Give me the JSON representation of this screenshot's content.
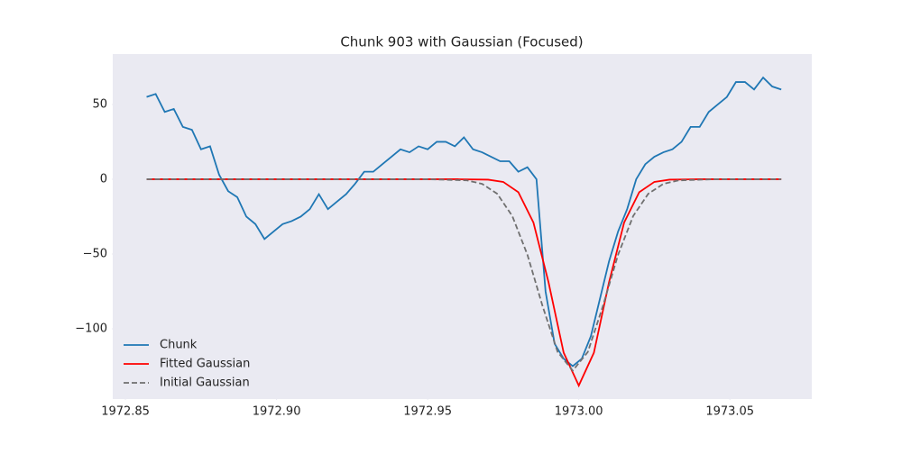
{
  "chart_data": {
    "type": "line",
    "title": "Chunk 903 with Gaussian (Focused)",
    "xlim": [
      1972.8458,
      1973.0771
    ],
    "ylim": [
      -147,
      83.7
    ],
    "xticks": [
      1972.85,
      {
        "value": 1972.9,
        "label": "1972.90"
      },
      1972.95,
      {
        "value": 1973,
        "label": "1973.00"
      },
      1973.05
    ],
    "yticks": [
      {
        "value": -100,
        "label": "−100"
      },
      {
        "value": -50,
        "label": "−50"
      },
      0,
      50
    ],
    "grid": false,
    "legend": "lower left",
    "series": [
      {
        "name": "Chunk",
        "color": "#1f77b4",
        "linestyle": "solid",
        "x": [
          1972.857,
          1972.86,
          1972.863,
          1972.866,
          1972.869,
          1972.872,
          1972.875,
          1972.878,
          1972.881,
          1972.884,
          1972.887,
          1972.89,
          1972.893,
          1972.896,
          1972.899,
          1972.902,
          1972.905,
          1972.908,
          1972.911,
          1972.914,
          1972.917,
          1972.92,
          1972.923,
          1972.926,
          1972.929,
          1972.932,
          1972.935,
          1972.938,
          1972.941,
          1972.944,
          1972.947,
          1972.95,
          1972.953,
          1972.956,
          1972.959,
          1972.962,
          1972.965,
          1972.968,
          1972.971,
          1972.974,
          1972.977,
          1972.98,
          1972.983,
          1972.986,
          1972.989,
          1972.992,
          1972.995,
          1972.998,
          1973.001,
          1973.004,
          1973.007,
          1973.01,
          1973.013,
          1973.016,
          1973.019,
          1973.022,
          1973.025,
          1973.028,
          1973.031,
          1973.034,
          1973.037,
          1973.04,
          1973.043,
          1973.046,
          1973.049,
          1973.052,
          1973.055,
          1973.058,
          1973.061,
          1973.064,
          1973.067
        ],
        "values": [
          55,
          57,
          45,
          47,
          35,
          33,
          20,
          22,
          3,
          -8,
          -12,
          -25,
          -30,
          -40,
          -35,
          -30,
          -28,
          -25,
          -20,
          -10,
          -20,
          -15,
          -10,
          -3,
          5,
          5,
          10,
          15,
          20,
          18,
          22,
          20,
          25,
          25,
          22,
          28,
          20,
          18,
          15,
          12,
          12,
          5,
          8,
          0,
          -75,
          -110,
          -120,
          -125,
          -120,
          -105,
          -80,
          -55,
          -35,
          -20,
          0,
          10,
          15,
          18,
          20,
          25,
          35,
          35,
          45,
          50,
          55,
          65,
          65,
          60,
          68,
          62,
          60
        ]
      },
      {
        "name": "Fitted Gaussian",
        "color": "#ff0000",
        "linestyle": "solid",
        "x": [
          1972.857,
          1972.96,
          1972.97,
          1972.975,
          1972.98,
          1972.985,
          1972.99,
          1972.995,
          1973.0,
          1973.005,
          1973.01,
          1973.015,
          1973.02,
          1973.025,
          1973.03,
          1973.04,
          1973.067
        ],
        "values": [
          0,
          0,
          -0.3,
          -1.8,
          -8.7,
          -29,
          -69,
          -116,
          -138,
          -116,
          -69,
          -29,
          -8.7,
          -1.8,
          -0.3,
          0,
          0
        ]
      },
      {
        "name": "Initial Gaussian",
        "color": "#707070",
        "linestyle": "dashed",
        "x": [
          1972.857,
          1972.95,
          1972.963,
          1972.968,
          1972.973,
          1972.978,
          1972.983,
          1972.988,
          1972.993,
          1972.998,
          1973.003,
          1973.008,
          1973.013,
          1973.018,
          1973.023,
          1973.028,
          1973.033,
          1973.045,
          1973.067
        ],
        "values": [
          0,
          0,
          -0.8,
          -3.1,
          -9.7,
          -24.6,
          -50.5,
          -84.7,
          -115.5,
          -128,
          -115.5,
          -84.7,
          -50.5,
          -24.6,
          -9.7,
          -3.1,
          -0.8,
          0,
          0
        ]
      }
    ]
  }
}
